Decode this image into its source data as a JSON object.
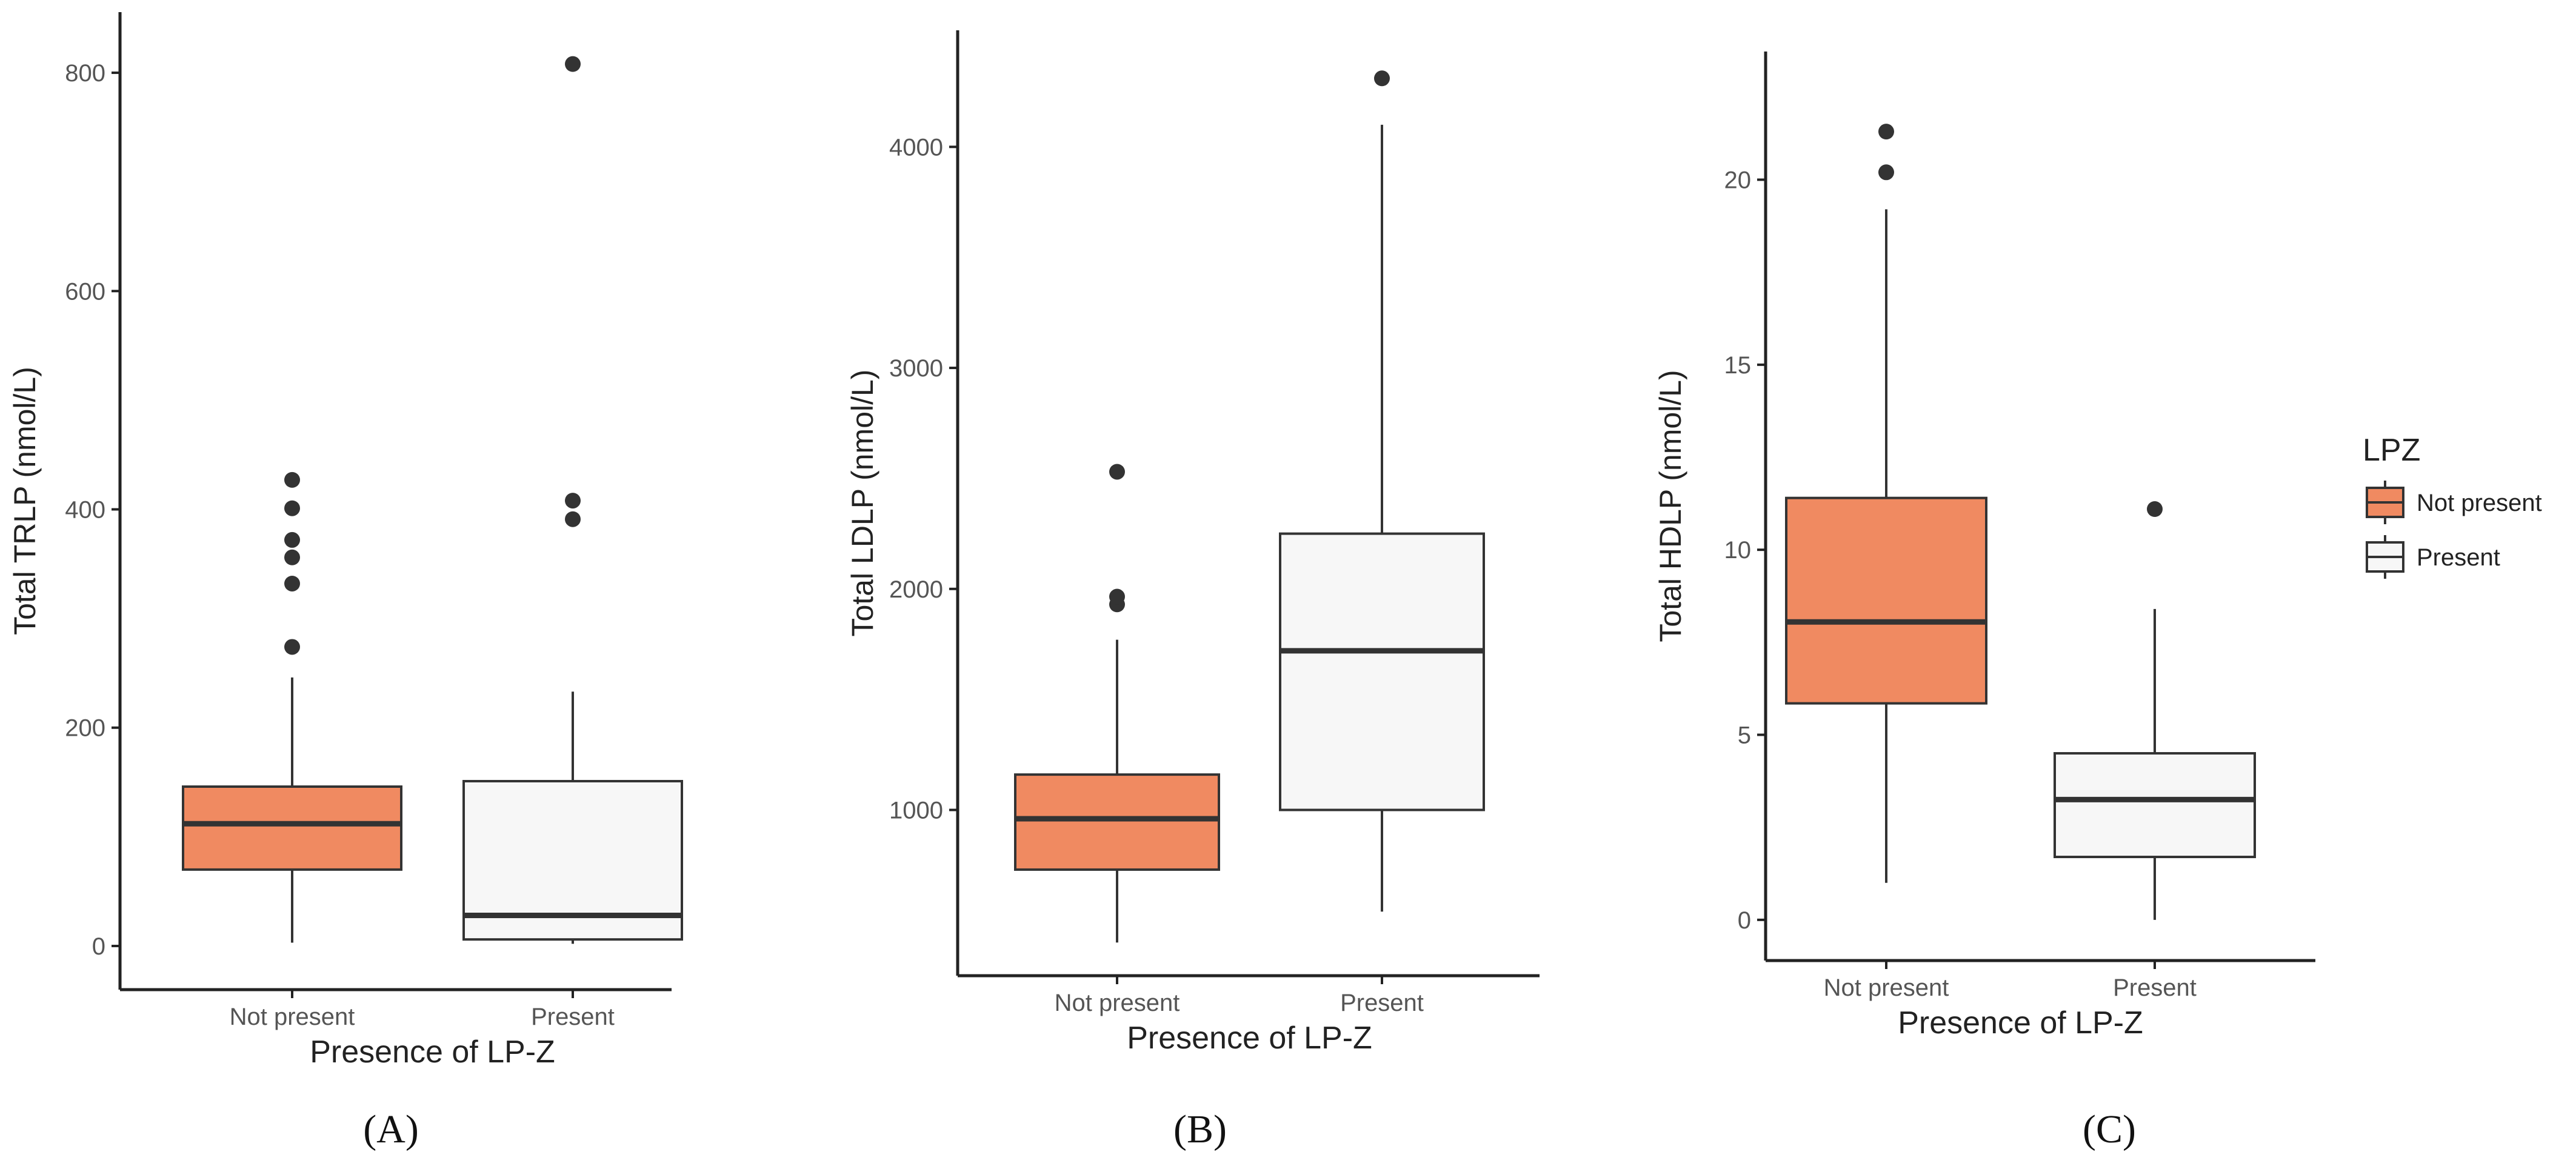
{
  "colors": {
    "not_present": "#F08A61",
    "present": "#F7F7F7",
    "stroke": "#333333",
    "axis": "#222222",
    "tick_text": "#555555",
    "title_text": "#222222"
  },
  "legend": {
    "title": "LPZ",
    "entries": [
      {
        "label": "Not present",
        "color": "#F08A61"
      },
      {
        "label": "Present",
        "color": "#F7F7F7"
      }
    ]
  },
  "chart_data": [
    {
      "type": "box",
      "panel_label": "(A)",
      "xlabel": "Presence of LP-Z",
      "ylabel": "Total TRLP (nmol/L)",
      "ylim": [
        -40,
        850
      ],
      "yticks": [
        0,
        200,
        400,
        600,
        800
      ],
      "categories": [
        "Not present",
        "Present"
      ],
      "boxes": [
        {
          "category": "Not present",
          "whisker_low": 3,
          "q1": 70,
          "median": 112,
          "q3": 146,
          "whisker_high": 246,
          "outliers": [
            274,
            332,
            356,
            372,
            401,
            427
          ]
        },
        {
          "category": "Present",
          "whisker_low": 2,
          "q1": 6,
          "median": 28,
          "q3": 151,
          "whisker_high": 233,
          "outliers": [
            391,
            408,
            808
          ]
        }
      ]
    },
    {
      "type": "box",
      "panel_label": "(B)",
      "xlabel": "Presence of LP-Z",
      "ylabel": "Total LDLP (nmol/L)",
      "ylim": [
        250,
        4500
      ],
      "yticks": [
        1000,
        2000,
        3000,
        4000
      ],
      "categories": [
        "Not present",
        "Present"
      ],
      "boxes": [
        {
          "category": "Not present",
          "whisker_low": 400,
          "q1": 730,
          "median": 960,
          "q3": 1160,
          "whisker_high": 1770,
          "outliers": [
            1930,
            1965,
            2530
          ]
        },
        {
          "category": "Present",
          "whisker_low": 540,
          "q1": 1000,
          "median": 1720,
          "q3": 2250,
          "whisker_high": 4100,
          "outliers": [
            4310
          ]
        }
      ]
    },
    {
      "type": "box",
      "panel_label": "(C)",
      "xlabel": "Presence of LP-Z",
      "ylabel": "Total HDLP (nmol/L)",
      "ylim": [
        -1.1,
        23.3
      ],
      "yticks": [
        0,
        5,
        10,
        15,
        20
      ],
      "categories": [
        "Not present",
        "Present"
      ],
      "boxes": [
        {
          "category": "Not present",
          "whisker_low": 1.0,
          "q1": 5.85,
          "median": 8.05,
          "q3": 11.4,
          "whisker_high": 19.2,
          "outliers": [
            20.2,
            21.3
          ]
        },
        {
          "category": "Present",
          "whisker_low": 0.0,
          "q1": 1.7,
          "median": 3.25,
          "q3": 4.5,
          "whisker_high": 8.4,
          "outliers": [
            11.1
          ]
        }
      ]
    }
  ]
}
